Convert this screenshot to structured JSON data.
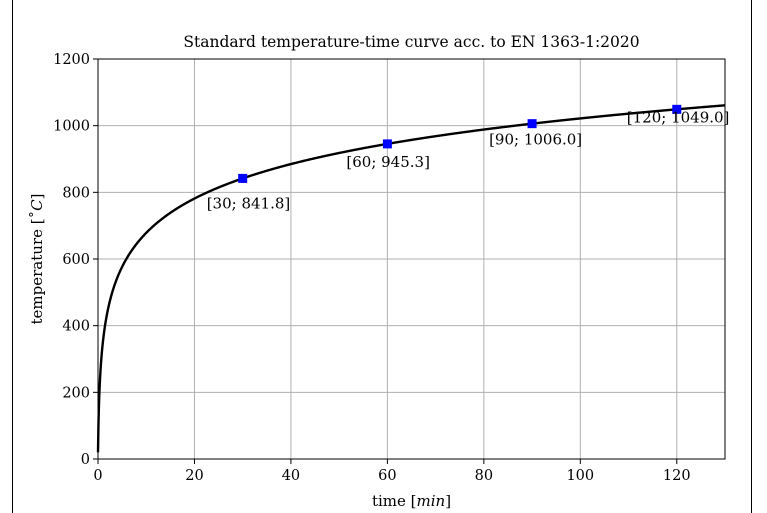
{
  "chart_data": {
    "type": "line",
    "title": "Standard temperature-time curve acc. to EN 1363-1:2020",
    "xlabel_text": "time ",
    "xlabel_unit": "min",
    "ylabel_text": "temperature ",
    "ylabel_unit": "C",
    "xlim": [
      0,
      130
    ],
    "ylim": [
      0,
      1200
    ],
    "xticks": [
      0,
      20,
      40,
      60,
      80,
      100,
      120
    ],
    "yticks": [
      0,
      200,
      400,
      600,
      800,
      1000,
      1200
    ],
    "grid": true,
    "series": [
      {
        "formula": "20 + 345*log10(8*t + 1)",
        "color": "#000000",
        "x": [
          0,
          1,
          2,
          5,
          10,
          20,
          30,
          40,
          50,
          60,
          70,
          80,
          90,
          100,
          110,
          120,
          130
        ],
        "y": [
          20.0,
          349.2,
          444.5,
          576.4,
          678.4,
          781.4,
          841.8,
          884.7,
          918.2,
          945.3,
          968.5,
          988.4,
          1006.0,
          1021.8,
          1036.0,
          1049.0,
          1061.0
        ]
      }
    ],
    "markers": [
      {
        "x": 30,
        "y": 841.8,
        "label": "[30; 841.8]"
      },
      {
        "x": 60,
        "y": 945.3,
        "label": "[60; 945.3]"
      },
      {
        "x": 90,
        "y": 1006.0,
        "label": "[90; 1006.0]"
      },
      {
        "x": 120,
        "y": 1049.0,
        "label": "[120; 1049.0]"
      }
    ],
    "marker_color": "#0000ff"
  }
}
